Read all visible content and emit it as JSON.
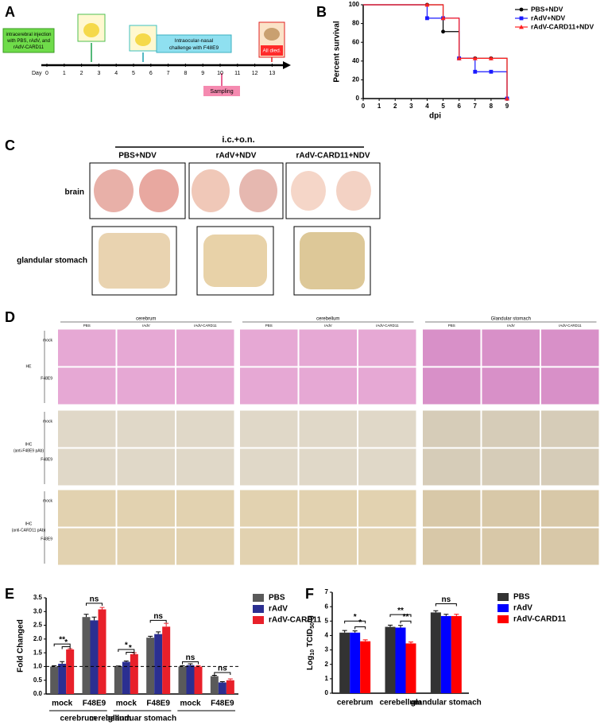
{
  "panel_labels": [
    "A",
    "B",
    "C",
    "D",
    "E",
    "F"
  ],
  "panel_a": {
    "injection": [
      "intracerebral injection",
      "with PBS, rAdV, and",
      "rAdV-CARD11"
    ],
    "challenge": [
      "Intraocular-nasal",
      "challenge with F48E9"
    ],
    "sampling": "Sampling",
    "died": "All died.",
    "day_label": "Day",
    "days": [
      0,
      1,
      2,
      3,
      4,
      5,
      6,
      7,
      8,
      9,
      10,
      11,
      12,
      13
    ]
  },
  "panel_c": {
    "header": "i.c.+o.n.",
    "groups": [
      "PBS+NDV",
      "rAdV+NDV",
      "rAdV-CARD11+NDV"
    ],
    "rows": [
      "brain",
      "glandular stomach"
    ]
  },
  "panel_d": {
    "regions": [
      "cerebrum",
      "cerebellum",
      "Glandular stomach"
    ],
    "columns": [
      "PBS",
      "rAdV",
      "rAdV-CARD11"
    ],
    "stains": [
      [
        "HE"
      ],
      [
        "IHC",
        "(anti-F48E9 pAb)"
      ],
      [
        "IHC",
        "(anti-CARD11 pAb)"
      ]
    ],
    "conditions": [
      "mock",
      "F48E9"
    ]
  },
  "chart_data": [
    {
      "type": "survival",
      "y_label": "Percent survival",
      "x_label": "dpi",
      "x": [
        0,
        4,
        5,
        6,
        7,
        8,
        9
      ],
      "xlim": [
        0,
        9
      ],
      "xticks": [
        0,
        1,
        2,
        3,
        4,
        5,
        6,
        7,
        8,
        9
      ],
      "ylim": [
        0,
        100
      ],
      "yticks": [
        0,
        20,
        40,
        60,
        80,
        100
      ],
      "series": [
        {
          "name": "PBS+NDV",
          "color": "#000000",
          "marker": "circle",
          "values": [
            100,
            100,
            71.4,
            42.9,
            42.9,
            42.9,
            0
          ]
        },
        {
          "name": "rAdV+NDV",
          "color": "#1a1aff",
          "marker": "square",
          "values": [
            100,
            85.7,
            85.7,
            42.9,
            28.6,
            28.6,
            0
          ]
        },
        {
          "name": "rAdV-CARD11+NDV",
          "color": "#ff2020",
          "marker": "triangle",
          "values": [
            100,
            100,
            85.7,
            42.9,
            42.9,
            42.9,
            0
          ]
        }
      ]
    },
    {
      "type": "bar",
      "y_label": "Fold Changed",
      "categories": [
        "mock",
        "F48E9",
        "mock",
        "F48E9",
        "mock",
        "F48E9"
      ],
      "groups": [
        "cerebrum",
        "cerebellum",
        "glanduar stomach"
      ],
      "ylim": [
        0,
        3.5
      ],
      "yticks": [
        {
          "value": 0,
          "label": "0.0"
        },
        {
          "value": 0.5,
          "label": "0.5"
        },
        {
          "value": 1,
          "label": "1.0"
        },
        {
          "value": 1.5,
          "label": "1.5"
        },
        {
          "value": 2,
          "label": "2.0"
        },
        {
          "value": 2.5,
          "label": "2.5"
        },
        {
          "value": 3,
          "label": "3.0"
        },
        {
          "value": 3.5,
          "label": "3.5"
        }
      ],
      "reference_line": 1,
      "series": [
        {
          "name": "PBS",
          "color": "#5a5a5a",
          "values": [
            1.0,
            2.8,
            1.0,
            2.05,
            1.0,
            0.65
          ],
          "errors": [
            0.03,
            0.1,
            0.02,
            0.05,
            0.03,
            0.03
          ]
        },
        {
          "name": "rAdV",
          "color": "#2b2f91",
          "values": [
            1.1,
            2.68,
            1.17,
            2.18,
            1.05,
            0.42
          ],
          "errors": [
            0.08,
            0.12,
            0.03,
            0.08,
            0.05,
            0.03
          ]
        },
        {
          "name": "rAdV-CARD11",
          "color": "#e8202a",
          "values": [
            1.62,
            3.08,
            1.45,
            2.45,
            1.0,
            0.5
          ],
          "errors": [
            0.03,
            0.07,
            0.05,
            0.12,
            0.03,
            0.05
          ]
        }
      ],
      "annotations": [
        "**",
        "*",
        "ns",
        "*",
        "*",
        "ns",
        "ns",
        "ns"
      ]
    },
    {
      "type": "bar",
      "y_label": [
        "Log",
        "10",
        " TCID",
        "50",
        "/g"
      ],
      "categories": [
        "cerebrum",
        "cerebellum",
        "glandular stomach"
      ],
      "ylim": [
        0,
        7
      ],
      "yticks": [
        0,
        1,
        2,
        3,
        4,
        5,
        6,
        7
      ],
      "series": [
        {
          "name": "PBS",
          "color": "#333333",
          "values": [
            4.2,
            4.6,
            5.6
          ],
          "errors": [
            0.15,
            0.12,
            0.12
          ]
        },
        {
          "name": "rAdV",
          "color": "#0000ff",
          "values": [
            4.2,
            4.55,
            5.35
          ],
          "errors": [
            0.12,
            0.15,
            0.12
          ]
        },
        {
          "name": "rAdV-CARD11",
          "color": "#ff0000",
          "values": [
            3.6,
            3.45,
            5.35
          ],
          "errors": [
            0.1,
            0.1,
            0.12
          ]
        }
      ],
      "annotations": [
        "*",
        "*",
        "**",
        "**",
        "ns"
      ]
    }
  ]
}
